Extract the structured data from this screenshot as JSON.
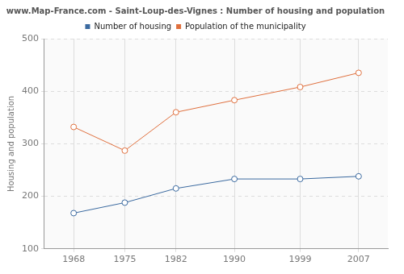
{
  "chart_data": {
    "type": "line",
    "title": "www.Map-France.com - Saint-Loup-des-Vignes : Number of housing and population",
    "y_label": "Housing and population",
    "x": [
      1968,
      1975,
      1982,
      1990,
      1999,
      2007
    ],
    "series": [
      {
        "name": "Number of housing",
        "color": "#3b6aa0",
        "values": [
          168,
          188,
          215,
          233,
          233,
          238
        ],
        "marker": "circle"
      },
      {
        "name": "Population of the municipality",
        "color": "#e0703e",
        "values": [
          332,
          287,
          360,
          383,
          408,
          435
        ],
        "marker": "circle"
      }
    ],
    "xlim": [
      1964,
      2011
    ],
    "xticks": [
      1968,
      1975,
      1982,
      1990,
      1999,
      2007
    ],
    "ylim": [
      100,
      500
    ],
    "yticks": [
      100,
      200,
      300,
      400,
      500
    ],
    "grid": true,
    "legend": "top"
  }
}
